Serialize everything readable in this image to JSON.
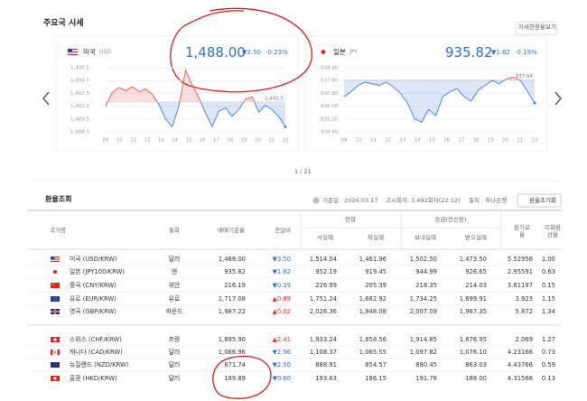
{
  "header": {
    "title": "주요국 시세",
    "button": "자세한환율보기"
  },
  "cards": [
    {
      "country": "미국",
      "code": "USD",
      "value": "1,488.00",
      "change": "▼3.50",
      "rate": "-0.23%",
      "chart": {
        "type": "line",
        "categories": [
          "09",
          "10",
          "11",
          "12",
          "13",
          "14",
          "15",
          "16",
          "17",
          "18",
          "19",
          "20",
          "21",
          "22"
        ],
        "values": [
          1491.0,
          1492.6,
          1493.2,
          1492.8,
          1493.3,
          1492.7,
          1493.0,
          1492.4,
          1491.2,
          1489.5,
          1488.6,
          1491.0,
          1495.2,
          1493.5,
          1492.0,
          1490.2,
          1488.6,
          1490.4,
          1490.8,
          1489.8,
          1490.6,
          1491.8,
          1492.1,
          1490.3,
          1491.1,
          1490.6,
          1489.8,
          1488.6
        ],
        "ylim": [
          1488,
          1495.5
        ],
        "yticks": [
          {
            "value": 1488,
            "label": "1,488.0"
          },
          {
            "value": 1489.5,
            "label": "1,489.5"
          },
          {
            "value": 1491,
            "label": "1,491.0"
          },
          {
            "value": 1492.5,
            "label": "1,492.5"
          },
          {
            "value": 1494,
            "label": "1,494.0"
          },
          {
            "value": 1495.5,
            "label": "1,495.5"
          }
        ],
        "baseline": {
          "value": 1491.5,
          "label": "1,491.5"
        },
        "colors": {
          "up": "#e8524b",
          "down": "#3b7de0"
        }
      }
    },
    {
      "country": "일본",
      "code": "JPY",
      "value": "935.82",
      "change": "▼1.82",
      "rate": "-0.19%",
      "chart": {
        "type": "line",
        "categories": [
          "09",
          "10",
          "11",
          "12",
          "13",
          "14",
          "15",
          "16",
          "17",
          "18",
          "19",
          "20",
          "21",
          "22"
        ],
        "values": [
          936.6,
          936.9,
          937.3,
          937.5,
          937.4,
          937.3,
          937.5,
          937.2,
          936.8,
          936.2,
          935.2,
          935.0,
          935.8,
          935.4,
          936.6,
          936.9,
          937.1,
          936.6,
          936.3,
          937.0,
          937.3,
          937.6,
          937.4,
          937.7,
          937.8,
          937.6,
          936.9,
          936.2
        ],
        "ylim": [
          934.4,
          938.4
        ],
        "yticks": [
          {
            "value": 934.4,
            "label": "934.40"
          },
          {
            "value": 935.2,
            "label": "935.20"
          },
          {
            "value": 936,
            "label": "936.00"
          },
          {
            "value": 936.8,
            "label": "936.80"
          },
          {
            "value": 937.6,
            "label": "937.60"
          },
          {
            "value": 938.4,
            "label": "938.40"
          }
        ],
        "baseline": {
          "value": 937.64,
          "label": "937.64"
        },
        "colors": {
          "up": "#e8524b",
          "down": "#3b7de0"
        }
      }
    }
  ],
  "pagination": "1 / 21",
  "section": {
    "title": "환율조회",
    "date": "기준일 : 2026.03.17",
    "round": "고시회차: 1,492회차(22:12)",
    "source": "출처 : 하나은행",
    "reset": "환율초기화"
  },
  "table": {
    "head": [
      "국가명",
      "통화",
      "매매기준율",
      "전일비",
      "현찰",
      "송금(전신환)",
      "환가료율",
      "미화환산율"
    ],
    "subhead": [
      "사실때",
      "파실때",
      "보내실때",
      "받으실때"
    ],
    "rows": [
      [
        "미국 (USD/KRW)",
        "달러",
        "1,488.00",
        "▼3.50",
        "1,514.04",
        "1,461.96",
        "1,502.50",
        "1,473.50",
        "5.52956",
        "1.00"
      ],
      [
        "일본 (JPY100/KRW)",
        "엔",
        "935.82",
        "▼1.82",
        "952.19",
        "919.45",
        "944.99",
        "926.65",
        "2.95591",
        "0.63"
      ],
      [
        "중국 (CNY/KRW)",
        "위안",
        "216.19",
        "▼0.29",
        "226.99",
        "205.39",
        "218.35",
        "214.03",
        "3.61197",
        "0.15"
      ],
      [
        "유로 (EUR/KRW)",
        "유로",
        "1,717.08",
        "▲0.89",
        "1,751.24",
        "1,682.92",
        "1,734.25",
        "1,699.91",
        "3.923",
        "1.15"
      ],
      [
        "영국 (GBP/KRW)",
        "파운드",
        "1,987.22",
        "▲0.02",
        "2,026.36",
        "1,948.08",
        "2,007.09",
        "1,967.35",
        "5.872",
        "1.34"
      ],
      [
        "스위스 (CHF/KRW)",
        "프랑",
        "1,895.90",
        "▲2.41",
        "1,933.24",
        "1,858.56",
        "1,914.85",
        "1,876.95",
        "2.069",
        "1.27"
      ],
      [
        "캐나다 (CAD/KRW)",
        "달러",
        "1,086.96",
        "▼2.96",
        "1,108.37",
        "1,065.55",
        "1,097.82",
        "1,076.10",
        "4.23166",
        "0.73"
      ],
      [
        "뉴질랜드 (NZD/KRW)",
        "달러",
        "871.74",
        "▼2.50",
        "888.91",
        "854.57",
        "880.45",
        "863.03",
        "4.43766",
        "0.59"
      ],
      [
        "홍콩 (HKD/KRW)",
        "달러",
        "189.89",
        "▼0.60",
        "193.63",
        "186.15",
        "191.78",
        "188.00",
        "4.31566",
        "0.13"
      ]
    ]
  }
}
